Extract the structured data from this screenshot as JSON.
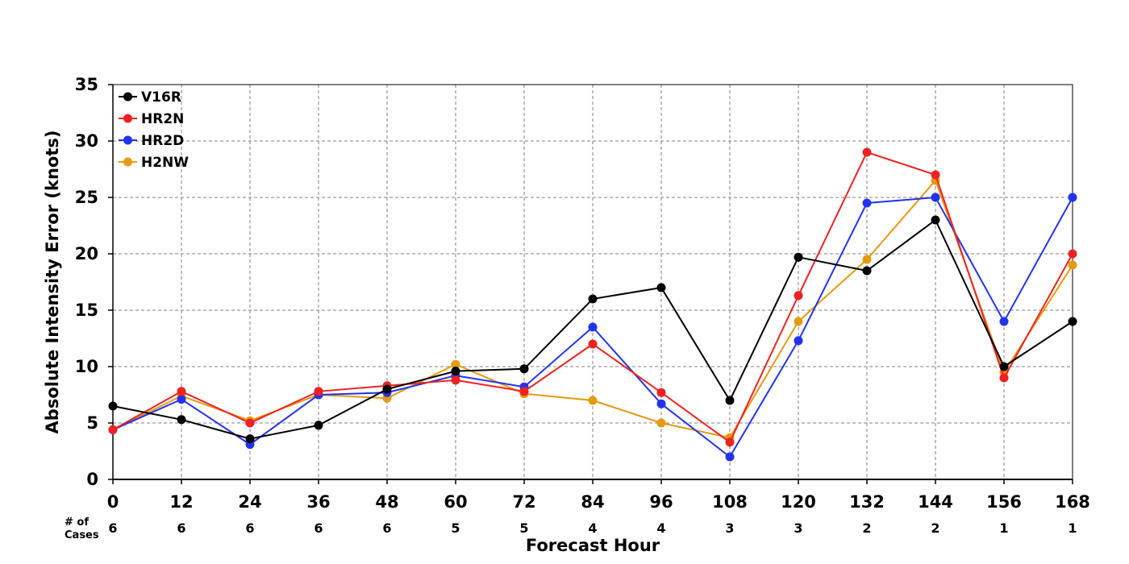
{
  "chart_data": {
    "type": "line",
    "x": [
      0,
      12,
      24,
      36,
      48,
      60,
      72,
      84,
      96,
      108,
      120,
      132,
      144,
      156,
      168
    ],
    "xlim": [
      0,
      168
    ],
    "ylim": [
      0,
      35
    ],
    "yticks": [
      0,
      5,
      10,
      15,
      20,
      25,
      30,
      35
    ],
    "xlabel": "Forecast Hour",
    "ylabel": "Absolute Intensity Error (knots)",
    "grid": true,
    "legend_position": "top-left",
    "cases_label_line1": "# of",
    "cases_label_line2": "Cases",
    "cases": [
      6,
      6,
      6,
      6,
      6,
      5,
      5,
      4,
      4,
      3,
      3,
      2,
      2,
      1,
      1
    ],
    "series": [
      {
        "name": "V16R",
        "color": "#000000",
        "values": [
          6.5,
          5.3,
          3.6,
          4.8,
          8.0,
          9.6,
          9.8,
          16.0,
          17.0,
          7.0,
          19.7,
          18.5,
          23.0,
          10.0,
          14.0
        ]
      },
      {
        "name": "HR2N",
        "color": "#ee2222",
        "values": [
          4.4,
          7.8,
          5.0,
          7.8,
          8.3,
          8.8,
          7.8,
          12.0,
          7.7,
          3.3,
          16.3,
          29.0,
          27.0,
          9.0,
          20.0
        ]
      },
      {
        "name": "HR2D",
        "color": "#2233ee",
        "values": [
          4.4,
          7.1,
          3.1,
          7.5,
          7.7,
          9.2,
          8.2,
          13.5,
          6.7,
          2.0,
          12.3,
          24.5,
          25.0,
          14.0,
          25.0
        ]
      },
      {
        "name": "H2NW",
        "color": "#e59a10",
        "values": [
          4.4,
          7.4,
          5.2,
          7.5,
          7.2,
          10.2,
          7.6,
          7.0,
          5.0,
          3.7,
          14.0,
          19.5,
          26.5,
          9.5,
          19.0
        ]
      }
    ]
  }
}
